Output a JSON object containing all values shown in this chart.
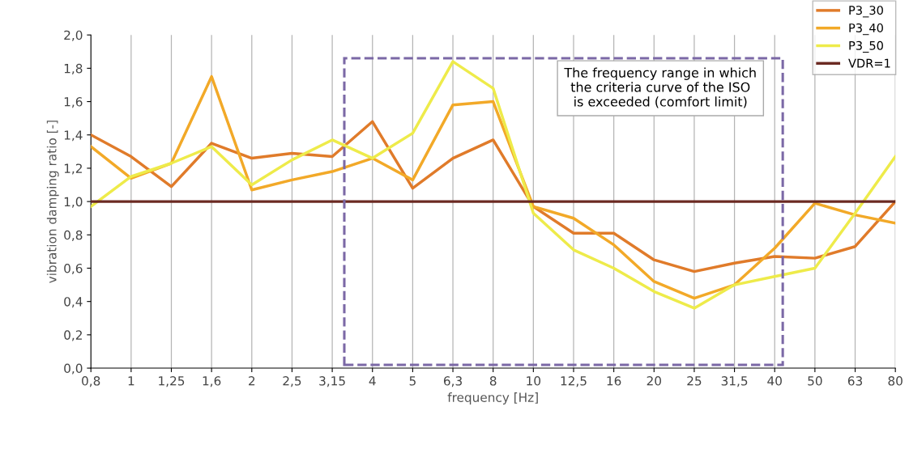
{
  "chart_data": {
    "type": "line",
    "xlabel": "frequency [Hz]",
    "ylabel": "vibration damping ratio [-]",
    "categories": [
      "0,8",
      "1",
      "1,25",
      "1,6",
      "2",
      "2,5",
      "3,15",
      "4",
      "5",
      "6,3",
      "8",
      "10",
      "12,5",
      "16",
      "20",
      "25",
      "31,5",
      "40",
      "50",
      "63",
      "80"
    ],
    "series": [
      {
        "name": "P3_30",
        "color": "#e07b2a",
        "values": [
          1.4,
          1.27,
          1.09,
          1.35,
          1.26,
          1.29,
          1.27,
          1.48,
          1.08,
          1.26,
          1.37,
          0.97,
          0.81,
          0.81,
          0.65,
          0.58,
          0.63,
          0.67,
          0.66,
          0.73,
          1.0
        ]
      },
      {
        "name": "P3_40",
        "color": "#f2a928",
        "values": [
          1.33,
          1.14,
          1.23,
          1.75,
          1.07,
          1.13,
          1.18,
          1.26,
          1.13,
          1.58,
          1.6,
          0.97,
          0.9,
          0.74,
          0.52,
          0.42,
          0.5,
          0.72,
          0.99,
          0.92,
          0.87
        ]
      },
      {
        "name": "P3_50",
        "color": "#eeeb4a",
        "values": [
          0.97,
          1.15,
          1.23,
          1.33,
          1.1,
          1.25,
          1.37,
          1.26,
          1.41,
          1.84,
          1.68,
          0.93,
          0.71,
          0.6,
          0.46,
          0.36,
          0.5,
          0.55,
          0.6,
          0.93,
          1.27
        ]
      },
      {
        "name": "VDR=1",
        "color": "#6b2a22",
        "values": [
          1,
          1,
          1,
          1,
          1,
          1,
          1,
          1,
          1,
          1,
          1,
          1,
          1,
          1,
          1,
          1,
          1,
          1,
          1,
          1,
          1
        ]
      }
    ],
    "ylim": [
      0,
      2
    ],
    "yticks": [
      {
        "value": 0,
        "label": "0,0"
      },
      {
        "value": 0.2,
        "label": "0,2"
      },
      {
        "value": 0.4,
        "label": "0,4"
      },
      {
        "value": 0.6,
        "label": "0,6"
      },
      {
        "value": 0.8,
        "label": "0,8"
      },
      {
        "value": 1.0,
        "label": "1,0"
      },
      {
        "value": 1.2,
        "label": "1,2"
      },
      {
        "value": 1.4,
        "label": "1,4"
      },
      {
        "value": 1.6,
        "label": "1,6"
      },
      {
        "value": 1.8,
        "label": "1,8"
      },
      {
        "value": 2.0,
        "label": "2,0"
      }
    ],
    "annotations": [
      "The frequency range in which\nthe criteria curve of the ISO\nis exceeded (comfort limit)"
    ],
    "grid": "x",
    "legend": "top right",
    "line_style": "solid",
    "marker": "none"
  }
}
